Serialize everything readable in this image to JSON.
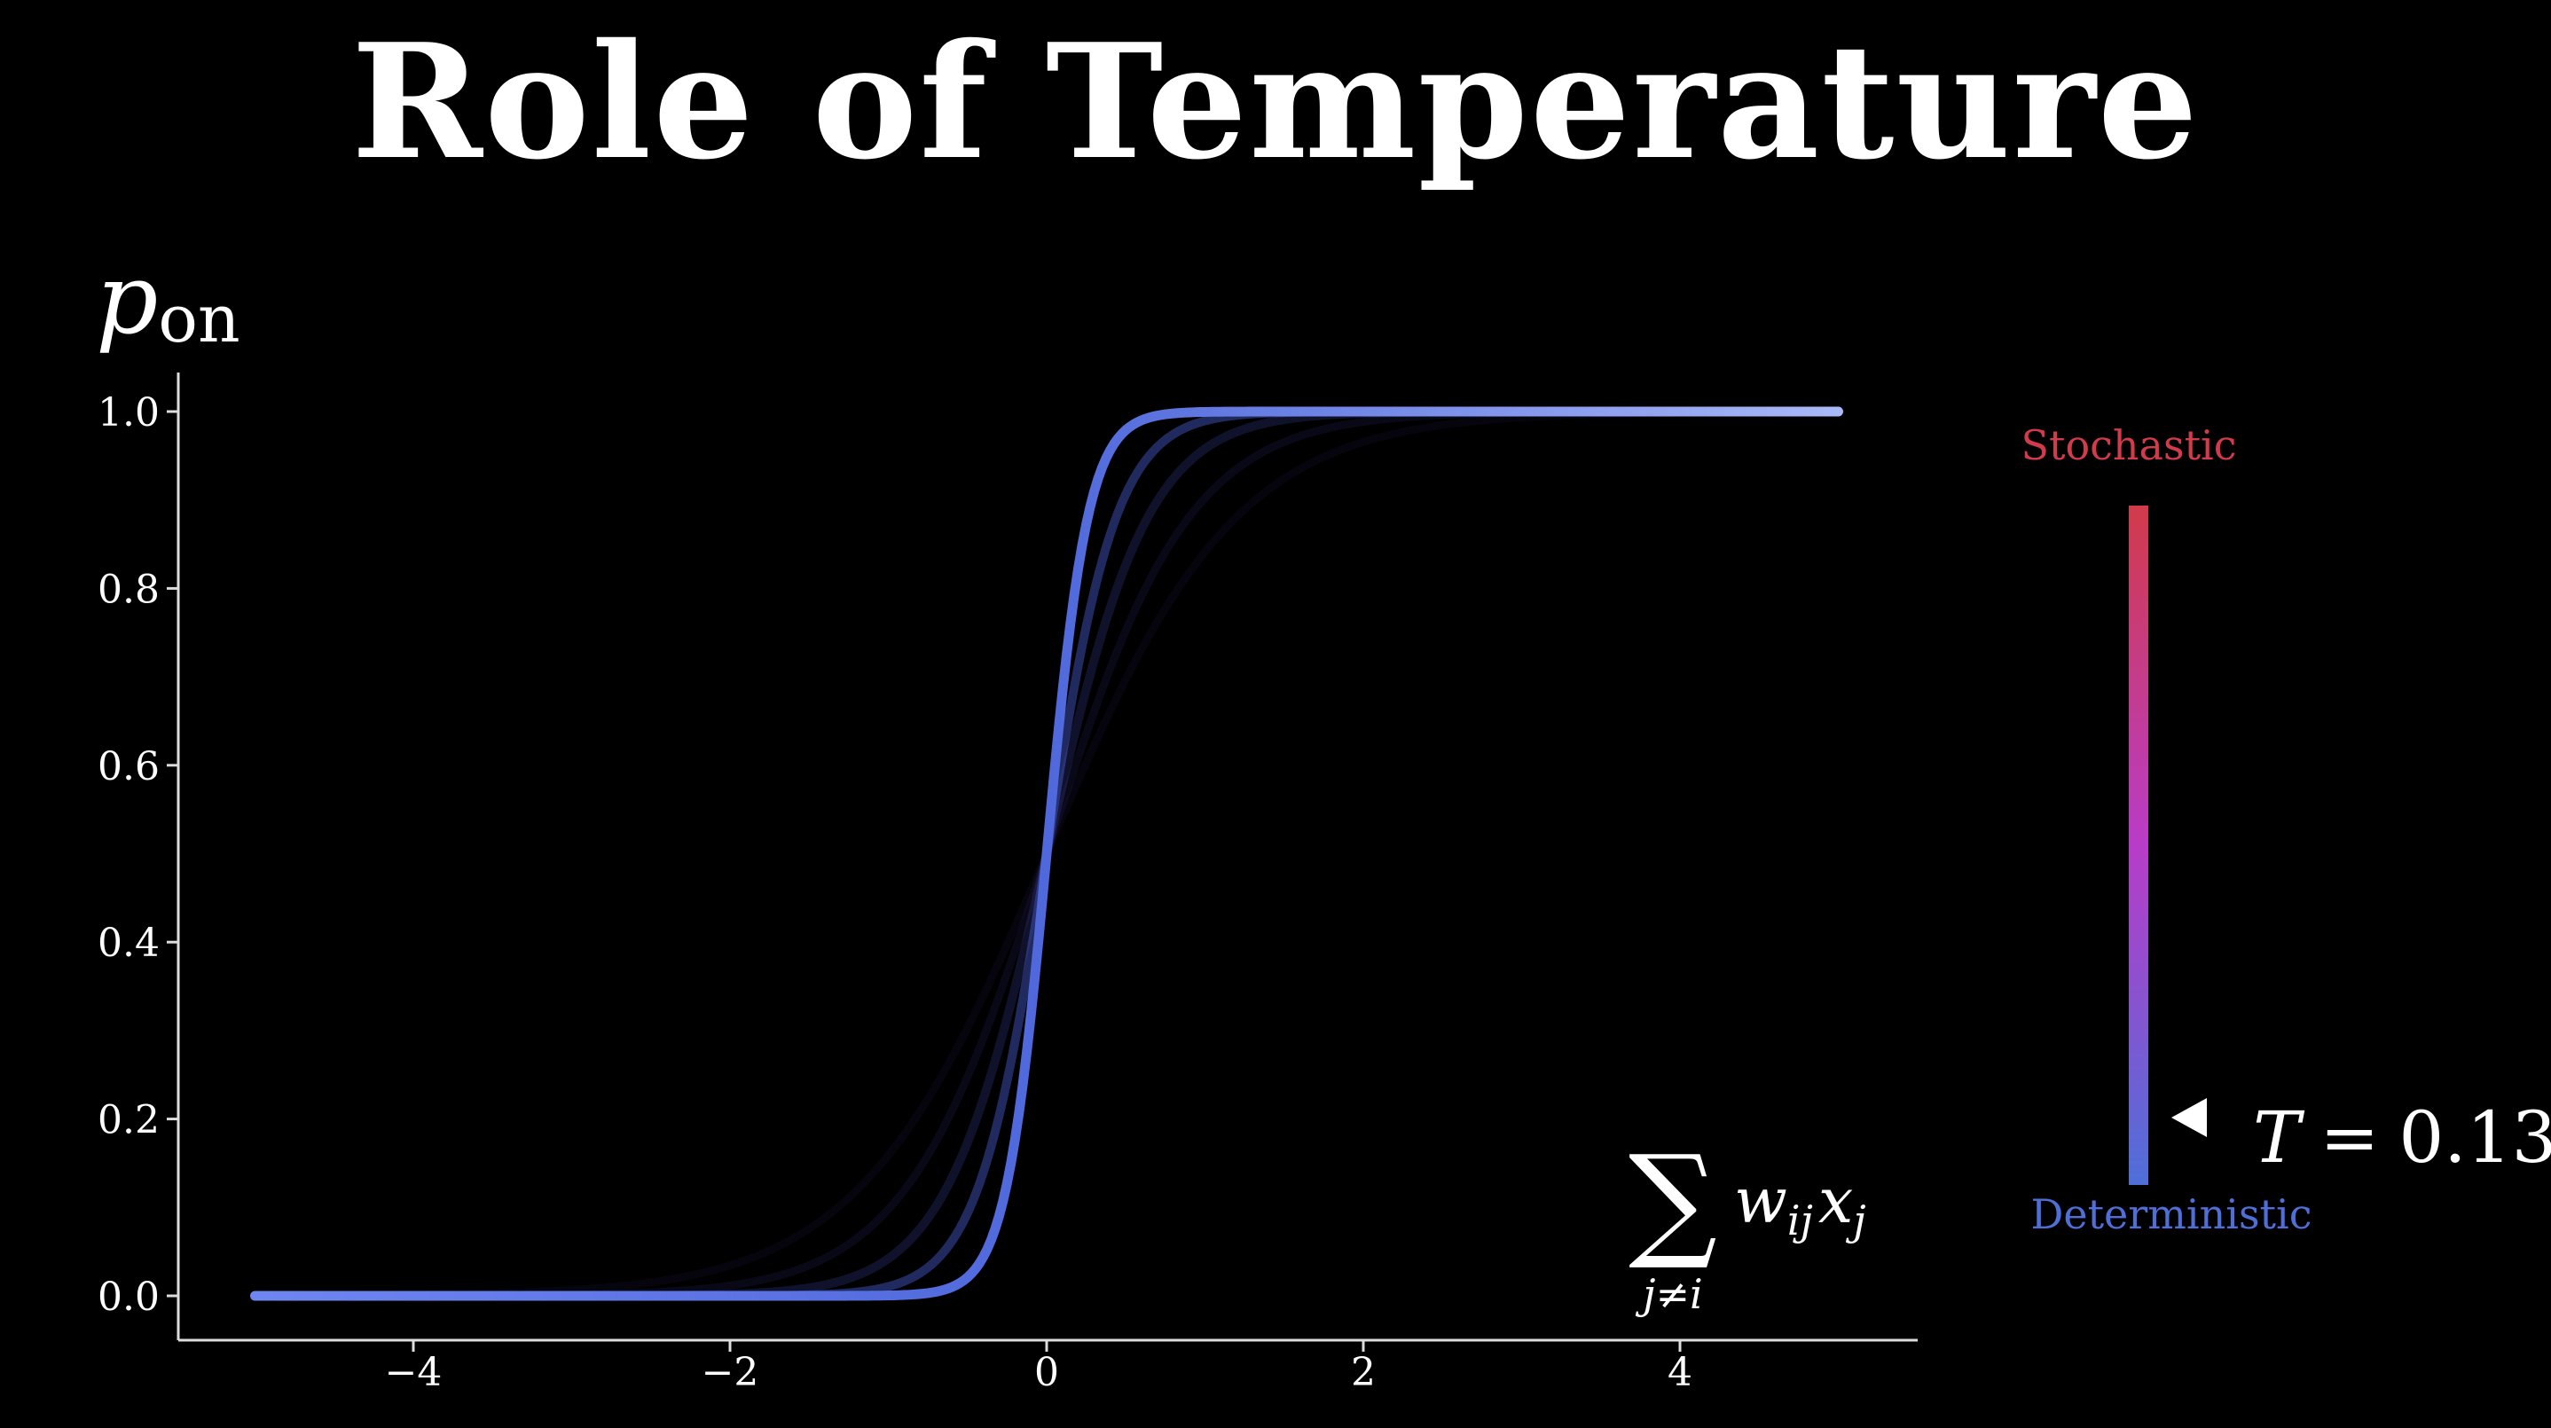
{
  "title": "Role of Temperature",
  "chart_data": {
    "type": "line",
    "ylabel": {
      "main": "p",
      "sub": "on"
    },
    "xlabel": {
      "sum": "∑",
      "body": "w",
      "body_sub": "ij",
      "var": "x",
      "var_sub": "j",
      "below": "j≠i"
    },
    "xlim": [
      -5,
      5
    ],
    "ylim": [
      0,
      1
    ],
    "xticks": [
      -4,
      -2,
      0,
      2,
      4
    ],
    "xtick_labels": [
      "−4",
      "−2",
      "0",
      "2",
      "4"
    ],
    "yticks": [
      0.0,
      0.2,
      0.4,
      0.6,
      0.8,
      1.0
    ],
    "ytick_labels": [
      "0.0",
      "0.2",
      "0.4",
      "0.6",
      "0.8",
      "1.0"
    ],
    "curve_function": "sigmoid(x / T)",
    "series": [
      {
        "T": 0.6,
        "opacity": 0.07,
        "color": "#5a3fb0",
        "width": 9
      },
      {
        "T": 0.45,
        "opacity": 0.12,
        "color": "#4d45b8",
        "width": 9
      },
      {
        "T": 0.32,
        "opacity": 0.22,
        "color": "#4b52c4",
        "width": 10
      },
      {
        "T": 0.22,
        "opacity": 0.45,
        "color": "#4a5dd0",
        "width": 10
      },
      {
        "T": 0.13,
        "opacity": 1.0,
        "color": "#5a74e0",
        "width": 11
      }
    ],
    "grid": false,
    "temperature_scale": {
      "top_label": "Stochastic",
      "bottom_label": "Deterministic",
      "top_color": "#d13b4b",
      "mid_color": "#b83cc8",
      "bottom_color": "#4f6fd8",
      "indicator": {
        "prefix": "T",
        "equals": "=",
        "value": "0.13"
      }
    }
  }
}
